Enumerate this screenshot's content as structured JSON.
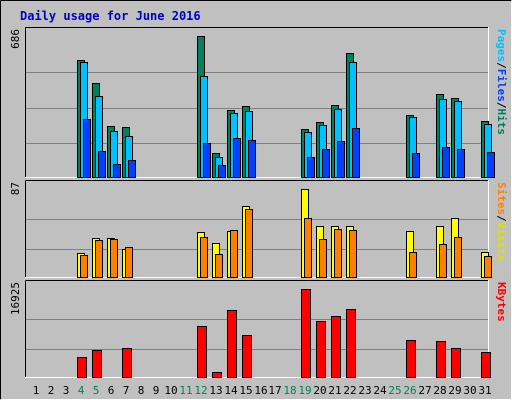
{
  "chart_data": {
    "type": "bar",
    "title": "Daily usage for June 2016",
    "categories": [
      "1",
      "2",
      "3",
      "4",
      "5",
      "6",
      "7",
      "8",
      "9",
      "10",
      "11",
      "12",
      "13",
      "14",
      "15",
      "16",
      "17",
      "18",
      "19",
      "20",
      "21",
      "22",
      "23",
      "24",
      "25",
      "26",
      "27",
      "28",
      "29",
      "30",
      "31"
    ],
    "weekend_days": [
      4,
      5,
      11,
      12,
      18,
      19,
      25,
      26
    ],
    "panels": [
      {
        "id": "top",
        "max_label": "686",
        "ylim": [
          0,
          686
        ],
        "right_labels": [
          "Pages",
          "/",
          "Files",
          "/",
          "Hits"
        ],
        "series": [
          {
            "name": "Hits",
            "color": "#00805c",
            "values": [
              0,
              0,
              0,
              568,
              455,
              250,
              245,
              0,
              0,
              0,
              0,
              686,
              116,
              325,
              343,
              0,
              0,
              0,
              235,
              270,
              350,
              605,
              0,
              0,
              0,
              300,
              0,
              405,
              385,
              0,
              272
            ]
          },
          {
            "name": "Files",
            "color": "#00c0ff",
            "values": [
              0,
              0,
              0,
              560,
              395,
              225,
              200,
              0,
              0,
              0,
              0,
              490,
              95,
              310,
              320,
              0,
              0,
              0,
              220,
              255,
              330,
              560,
              0,
              0,
              0,
              290,
              0,
              380,
              370,
              0,
              260
            ]
          },
          {
            "name": "Pages",
            "color": "#0040ff",
            "values": [
              0,
              0,
              0,
              280,
              125,
              65,
              85,
              0,
              0,
              0,
              0,
              165,
              60,
              190,
              180,
              0,
              0,
              0,
              95,
              135,
              175,
              240,
              0,
              0,
              0,
              115,
              0,
              145,
              135,
              0,
              120
            ]
          }
        ]
      },
      {
        "id": "mid",
        "max_label": "87",
        "ylim": [
          0,
          87
        ],
        "right_labels": [
          "Sites",
          "/",
          "Visits"
        ],
        "series": [
          {
            "name": "Visits",
            "color": "#ffff00",
            "values": [
              0,
              0,
              0,
              24,
              39,
              39,
              28,
              0,
              0,
              0,
              0,
              44,
              34,
              45,
              70,
              0,
              0,
              0,
              87,
              50,
              50,
              50,
              0,
              0,
              0,
              45,
              0,
              50,
              58,
              0,
              25
            ]
          },
          {
            "name": "Sites",
            "color": "#ff8000",
            "values": [
              0,
              0,
              0,
              22,
              37,
              38,
              30,
              0,
              0,
              0,
              0,
              40,
              23,
              46,
              67,
              0,
              0,
              0,
              58,
              38,
              47,
              46,
              0,
              0,
              0,
              25,
              0,
              33,
              40,
              0,
              21
            ]
          }
        ]
      },
      {
        "id": "bot",
        "max_label": "16925",
        "ylim": [
          0,
          16925
        ],
        "right_labels": [
          "KBytes"
        ],
        "series": [
          {
            "name": "KBytes",
            "color": "#ff0000",
            "values": [
              0,
              0,
              0,
              3800,
              5200,
              0,
              5500,
              0,
              0,
              0,
              0,
              9800,
              1000,
              12800,
              8000,
              0,
              0,
              0,
              16925,
              10800,
              11800,
              13000,
              0,
              0,
              0,
              7200,
              0,
              7000,
              5600,
              0,
              4800
            ]
          }
        ]
      }
    ],
    "colors": {
      "title": "#0000c0",
      "day_normal": "#000000",
      "day_weekend": "#00805c",
      "label_gray": "#808080",
      "sites": "#ff8000",
      "visits": "#e0e000",
      "pages": "#00c0ff",
      "files": "#0040ff",
      "hits": "#00805c",
      "kbytes": "#ff0000"
    }
  }
}
